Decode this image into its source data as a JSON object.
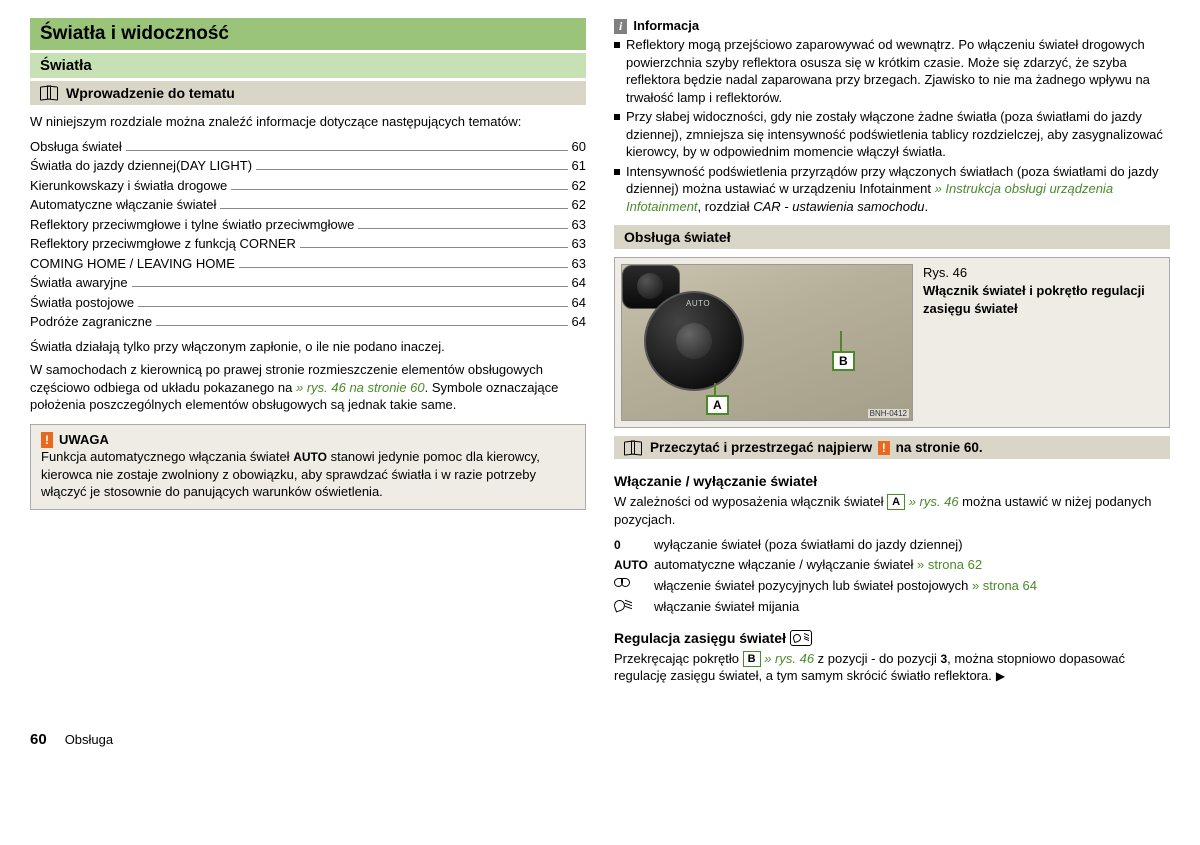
{
  "colors": {
    "h1_bg": "#9ac47a",
    "h2_bg": "#c7e0b4",
    "h3_bg": "#d9d5c7",
    "box_bg": "#eeece4",
    "link_green": "#4a8a2a",
    "warn_orange": "#e96a1f",
    "info_grey": "#808080"
  },
  "left": {
    "h1": "Światła i widoczność",
    "h2": "Światła",
    "h3": "Wprowadzenie do tematu",
    "intro": "W niniejszym rozdziale można znaleźć informacje dotyczące następujących tematów:",
    "toc": [
      {
        "label": "Obsługa świateł",
        "page": "60"
      },
      {
        "label": "Światła do jazdy dziennej(DAY LIGHT)",
        "page": "61"
      },
      {
        "label": "Kierunkowskazy i światła drogowe",
        "page": "62"
      },
      {
        "label": "Automatyczne włączanie świateł",
        "page": "62"
      },
      {
        "label": "Reflektory przeciwmgłowe i tylne światło przeciwmgłowe",
        "page": "63"
      },
      {
        "label": "Reflektory przeciwmgłowe z funkcją CORNER",
        "page": "63"
      },
      {
        "label": "COMING HOME / LEAVING HOME",
        "page": "63"
      },
      {
        "label": "Światła awaryjne",
        "page": "64"
      },
      {
        "label": "Światła postojowe",
        "page": "64"
      },
      {
        "label": "Podróże zagraniczne",
        "page": "64"
      }
    ],
    "para1": "Światła działają tylko przy włączonym zapłonie, o ile nie podano inaczej.",
    "para2_a": "W samochodach z kierownicą po prawej stronie rozmieszczenie elementów obsługowych częściowo odbiega od układu pokazanego na ",
    "para2_link": "» rys. 46",
    "para2_b": " na stronie 60",
    "para2_c": ". Symbole oznaczające położenia poszczególnych elementów obsługowych są jednak takie same.",
    "warn_badge": "!",
    "warn_title": "UWAGA",
    "warn_a": "Funkcja automatycznego włączania świateł ",
    "warn_auto": "AUTO",
    "warn_b": " stanowi jedynie pomoc dla kierowcy, kierowca nie zostaje zwolniony z obowiązku, aby sprawdzać światła i w razie potrzeby włączyć je stosownie do panujących warunków oświetlenia."
  },
  "right": {
    "info_badge": "i",
    "info_title": "Informacja",
    "bullets": [
      "Reflektory mogą przejściowo zaparowywać od wewnątrz. Po włączeniu świateł drogowych powierzchnia szyby reflektora osusza się w krótkim czasie. Może się zdarzyć, że szyba reflektora będzie nadal zaparowana przy brzegach. Zjawisko to nie ma żadnego wpływu na trwałość lamp i reflektorów.",
      "Przy słabej widoczności, gdy nie zostały włączone żadne światła (poza światłami do jazdy dziennej), zmniejsza się intensywność podświetlenia tablicy rozdzielczej, aby zasygnalizować kierowcy, by w odpowiednim momencie włączył światła."
    ],
    "bullet3_a": "Intensywność podświetlenia przyrządów przy włączonych światłach (poza światłami do jazdy dziennej) można ustawiać w urządzeniu Infotainment ",
    "bullet3_link": "» Instrukcja obsługi urządzenia Infotainment",
    "bullet3_b": ", rozdział ",
    "bullet3_c": "CAR - ustawienia samochodu",
    "bullet3_d": ".",
    "h3": "Obsługa świateł",
    "fig_num": "Rys. 46",
    "fig_title": "Włącznik świateł i pokrętło regulacji zasięgu świateł",
    "fig_marker_a": "A",
    "fig_marker_b": "B",
    "fig_id": "BNH-0412",
    "dial_auto": "AUTO",
    "read_first_a": "Przeczytać i przestrzegać najpierw ",
    "read_first_badge": "!",
    "read_first_b": " na stronie  60.",
    "sub1": "Włączanie / wyłączanie świateł",
    "sub1_a": "W zależności od wyposażenia włącznik świateł ",
    "sub1_marker": "A",
    "sub1_link": " » rys. 46",
    "sub1_b": " można ustawić w niżej podanych pozycjach.",
    "positions": [
      {
        "sym": "0",
        "text_a": "wyłączanie świateł (poza światłami do jazdy dziennej)",
        "link": ""
      },
      {
        "sym": "AUTO",
        "text_a": "automatyczne włączanie / wyłączanie świateł ",
        "link": "» strona 62"
      },
      {
        "sym": "POS",
        "text_a": "włączenie świateł pozycyjnych lub świateł postojowych ",
        "link": "» strona 64"
      },
      {
        "sym": "LOW",
        "text_a": "włączanie świateł mijania",
        "link": ""
      }
    ],
    "sub2_a": "Regulacja zasięgu świateł ",
    "sub2_para_a": "Przekręcając pokrętło ",
    "sub2_marker": "B",
    "sub2_link": " » rys. 46",
    "sub2_para_b": " z pozycji - do pozycji ",
    "sub2_three": "3",
    "sub2_para_c": ", można stopniowo dopasować regulację zasięgu świateł, a tym samym skrócić światło reflektora."
  },
  "footer": {
    "page": "60",
    "section": "Obsługa"
  }
}
